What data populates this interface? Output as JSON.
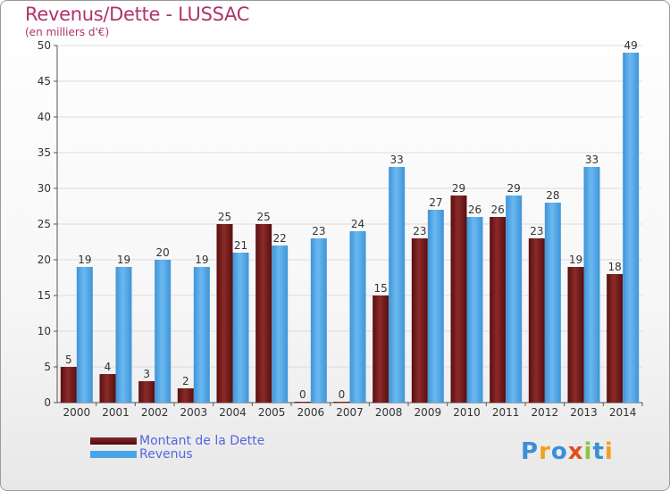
{
  "chart_data": {
    "type": "bar",
    "title": "Revenus/Dette - LUSSAC",
    "subtitle": "(en milliers d'€)",
    "categories": [
      "2000",
      "2001",
      "2002",
      "2003",
      "2004",
      "2005",
      "2006",
      "2007",
      "2008",
      "2009",
      "2010",
      "2011",
      "2012",
      "2013",
      "2014"
    ],
    "series": [
      {
        "name": "Montant de la Dette",
        "color": "#7a1a1a",
        "values": [
          5,
          4,
          3,
          2,
          25,
          25,
          0,
          0,
          15,
          23,
          29,
          26,
          23,
          19,
          18
        ]
      },
      {
        "name": "Revenus",
        "color": "#4aa3e6",
        "values": [
          19,
          19,
          20,
          19,
          21,
          22,
          23,
          24,
          33,
          27,
          26,
          29,
          28,
          33,
          49
        ]
      }
    ],
    "ylim": [
      0,
      50
    ],
    "yticks": [
      0,
      5,
      10,
      15,
      20,
      25,
      30,
      35,
      40,
      45,
      50
    ],
    "grid": true,
    "legend": "bottom-left"
  },
  "logo": {
    "letters": [
      "P",
      "r",
      "o",
      "x",
      "i",
      "t",
      "i"
    ],
    "colors": [
      "#3a8fd8",
      "#f0a020",
      "#3a8fd8",
      "#e05020",
      "#8cc63f",
      "#3a8fd8",
      "#f0a020"
    ]
  }
}
